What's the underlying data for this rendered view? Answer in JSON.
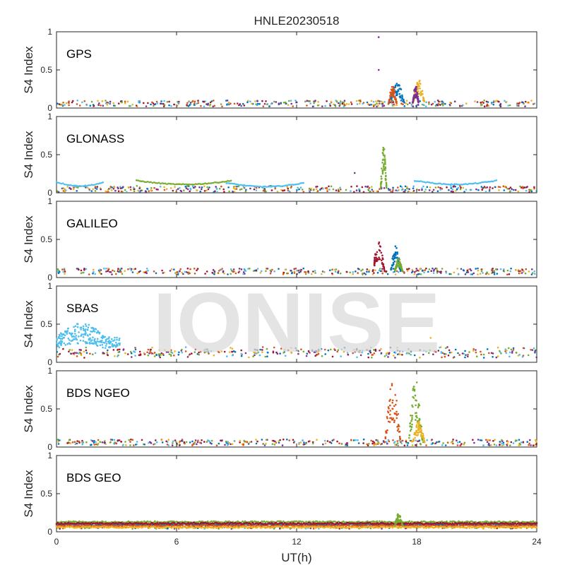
{
  "chart_data": {
    "type": "scatter",
    "title": "HNLE20230518",
    "xlabel": "UT(h)",
    "ylabel": "S4 Index",
    "xlim": [
      0,
      24
    ],
    "ylim": [
      0,
      1
    ],
    "xticks": [
      "0",
      "6",
      "12",
      "18",
      "24"
    ],
    "yticks": [
      "0",
      "0.5",
      "1"
    ],
    "grid": false,
    "watermark": "IONISE",
    "colors": [
      "#0072BD",
      "#D95319",
      "#EDB120",
      "#7E2F8E",
      "#77AC30",
      "#4DBEEE",
      "#A2142F"
    ],
    "panels": [
      {
        "label": "GPS",
        "baseline": 0.06,
        "features": [
          {
            "x_range": [
              16.6,
              17.4
            ],
            "peak": 0.35,
            "color": "#0072BD"
          },
          {
            "x_range": [
              16.6,
              17.0
            ],
            "peak": 0.3,
            "color": "#D95319"
          },
          {
            "x_range": [
              17.8,
              18.4
            ],
            "peak": 0.38,
            "color": "#EDB120"
          },
          {
            "x_range": [
              17.8,
              18.1
            ],
            "peak": 0.3,
            "color": "#7E2F8E"
          },
          {
            "points": [
              [
                16.1,
                0.93
              ],
              [
                16.1,
                0.5
              ]
            ],
            "color": "#7E2F8E"
          }
        ]
      },
      {
        "label": "GLONASS",
        "baseline": 0.05,
        "arcs": [
          {
            "x_range": [
              0.0,
              2.4
            ],
            "level": 0.14,
            "color": "#4DBEEE"
          },
          {
            "x_range": [
              4.0,
              8.8
            ],
            "level": 0.16,
            "color": "#77AC30"
          },
          {
            "x_range": [
              8.5,
              12.4
            ],
            "level": 0.13,
            "color": "#4DBEEE"
          },
          {
            "x_range": [
              17.9,
              22.0
            ],
            "level": 0.16,
            "color": "#4DBEEE"
          }
        ],
        "features": [
          {
            "x_range": [
              16.2,
              16.5
            ],
            "peak": 0.62,
            "color": "#77AC30"
          },
          {
            "points": [
              [
                14.9,
                0.26
              ]
            ],
            "color": "#7E2F8E"
          }
        ]
      },
      {
        "label": "GALILEO",
        "baseline": 0.08,
        "features": [
          {
            "x_range": [
              15.8,
              16.4
            ],
            "peak": 0.47,
            "color": "#A2142F"
          },
          {
            "x_range": [
              16.7,
              17.2
            ],
            "peak": 0.42,
            "color": "#0072BD"
          },
          {
            "x_range": [
              16.9,
              17.3
            ],
            "peak": 0.25,
            "color": "#77AC30"
          }
        ]
      },
      {
        "label": "SBAS",
        "baseline": 0.1,
        "features": [
          {
            "x_range": [
              0.0,
              3.2
            ],
            "peak": 0.52,
            "color": "#4DBEEE"
          },
          {
            "points": [
              [
                18.7,
                0.32
              ]
            ],
            "color": "#EDB120"
          }
        ]
      },
      {
        "label": "BDS NGEO",
        "baseline": 0.06,
        "features": [
          {
            "x_range": [
              16.4,
              17.2
            ],
            "peak": 0.85,
            "color": "#D95319"
          },
          {
            "x_range": [
              17.6,
              18.3
            ],
            "peak": 0.9,
            "color": "#77AC30"
          },
          {
            "x_range": [
              17.8,
              18.4
            ],
            "peak": 0.35,
            "color": "#EDB120"
          }
        ]
      },
      {
        "label": "BDS GEO",
        "baseline": 0.08,
        "bands": [
          {
            "level": 0.13,
            "color": "#77AC30"
          },
          {
            "level": 0.1,
            "color": "#0072BD"
          },
          {
            "level": 0.08,
            "color": "#D95319"
          },
          {
            "level": 0.06,
            "color": "#EDB120"
          },
          {
            "level": 0.11,
            "color": "#A2142F"
          }
        ],
        "features": [
          {
            "x_range": [
              16.9,
              17.3
            ],
            "peak": 0.24,
            "color": "#77AC30"
          }
        ]
      }
    ]
  }
}
